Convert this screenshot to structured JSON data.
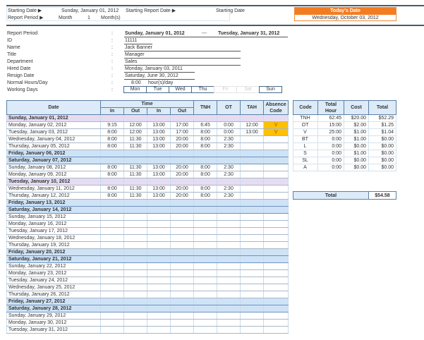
{
  "header": {
    "starting_date_label": "Starting Date ▶",
    "starting_date": "Sunday, January 01, 2012",
    "starting_report_label": "Starting Report Date ▶",
    "starting_report_value": "Starting Date",
    "report_period_label": "Report Period ▶",
    "period_unit": "Month",
    "period_count": "1",
    "period_suffix": "Month(s)",
    "today_label": "Today's Date",
    "today_value": "Wednesday, October 03, 2012",
    "accent": "#f47c20"
  },
  "info": {
    "report_period": {
      "label": "Report Period",
      "from": "Sunday, January 01, 2012",
      "sep": "—",
      "to": "Tuesday, January 31, 2012"
    },
    "fields": [
      {
        "label": "ID",
        "value": "11111"
      },
      {
        "label": "Name",
        "value": "Jack Banner"
      },
      {
        "label": "Title",
        "value": "Manager"
      },
      {
        "label": "Department",
        "value": "Sales"
      },
      {
        "label": "Hired Date",
        "value": "Monday, January 03, 2011"
      },
      {
        "label": "Resign Date",
        "value": "Saturday, June 30, 2012"
      }
    ],
    "normal_hours": {
      "label": "Normal Hours/Day",
      "value": "8:00",
      "unit": "hour(s)/day"
    },
    "working_days": {
      "label": "Working Days",
      "days": [
        {
          "d": "Mon",
          "on": true
        },
        {
          "d": "Tue",
          "on": true
        },
        {
          "d": "Wed",
          "on": true
        },
        {
          "d": "Thu",
          "on": true
        },
        {
          "d": "Fri",
          "on": false
        },
        {
          "d": "Sat",
          "on": false
        },
        {
          "d": "Sun",
          "on": true
        }
      ]
    },
    "colon": ":"
  },
  "timesheet": {
    "headers": {
      "date": "Date",
      "time": "Time",
      "in": "In",
      "out": "Out",
      "tnh": "TNH",
      "ot": "OT",
      "tah": "TAH",
      "absence": "Absence Code"
    },
    "rows": [
      {
        "date": "Sunday, January 01, 2012",
        "type": "holiday",
        "v": []
      },
      {
        "date": "Monday, January 02, 2012",
        "type": "",
        "v": [
          "9:15",
          "12:00",
          "13:00",
          "17:00",
          "6:45",
          "0:00",
          "12:00",
          "V"
        ]
      },
      {
        "date": "Tuesday, January 03, 2012",
        "type": "",
        "v": [
          "8:00",
          "12:00",
          "13:00",
          "17:00",
          "8:00",
          "0:00",
          "13:00",
          "V"
        ]
      },
      {
        "date": "Wednesday, January 04, 2012",
        "type": "",
        "v": [
          "8:00",
          "11:30",
          "13:00",
          "20:00",
          "8:00",
          "2:30",
          "",
          ""
        ]
      },
      {
        "date": "Thursday, January 05, 2012",
        "type": "",
        "v": [
          "8:00",
          "11:30",
          "13:00",
          "20:00",
          "8:00",
          "2:30",
          "",
          ""
        ]
      },
      {
        "date": "Friday, January 06, 2012",
        "type": "weekend",
        "v": []
      },
      {
        "date": "Saturday, January 07, 2012",
        "type": "weekend",
        "v": []
      },
      {
        "date": "Sunday, January 08, 2012",
        "type": "",
        "v": [
          "8:00",
          "11:30",
          "13:00",
          "20:00",
          "8:00",
          "2:30",
          "",
          ""
        ]
      },
      {
        "date": "Monday, January 09, 2012",
        "type": "",
        "v": [
          "8:00",
          "11:30",
          "13:00",
          "20:00",
          "8:00",
          "2:30",
          "",
          ""
        ]
      },
      {
        "date": "Tuesday, January 10, 2012",
        "type": "holiday",
        "v": []
      },
      {
        "date": "Wednesday, January 11, 2012",
        "type": "",
        "v": [
          "8:00",
          "11:30",
          "13:00",
          "20:00",
          "8:00",
          "2:30",
          "",
          ""
        ]
      },
      {
        "date": "Thursday, January 12, 2012",
        "type": "",
        "v": [
          "8:00",
          "11:30",
          "13:00",
          "20:00",
          "8:00",
          "2:30",
          "",
          ""
        ]
      },
      {
        "date": "Friday, January 13, 2012",
        "type": "weekend",
        "v": []
      },
      {
        "date": "Saturday, January 14, 2012",
        "type": "weekend",
        "v": []
      },
      {
        "date": "Sunday, January 15, 2012",
        "type": "",
        "v": []
      },
      {
        "date": "Monday, January 16, 2012",
        "type": "",
        "v": []
      },
      {
        "date": "Tuesday, January 17, 2012",
        "type": "",
        "v": []
      },
      {
        "date": "Wednesday, January 18, 2012",
        "type": "",
        "v": []
      },
      {
        "date": "Thursday, January 19, 2012",
        "type": "",
        "v": []
      },
      {
        "date": "Friday, January 20, 2012",
        "type": "weekend",
        "v": []
      },
      {
        "date": "Saturday, January 21, 2012",
        "type": "weekend",
        "v": []
      },
      {
        "date": "Sunday, January 22, 2012",
        "type": "",
        "v": []
      },
      {
        "date": "Monday, January 23, 2012",
        "type": "",
        "v": []
      },
      {
        "date": "Tuesday, January 24, 2012",
        "type": "",
        "v": []
      },
      {
        "date": "Wednesday, January 25, 2012",
        "type": "",
        "v": []
      },
      {
        "date": "Thursday, January 26, 2012",
        "type": "",
        "v": []
      },
      {
        "date": "Friday, January 27, 2012",
        "type": "weekend",
        "v": []
      },
      {
        "date": "Saturday, January 28, 2012",
        "type": "weekend",
        "v": []
      },
      {
        "date": "Sunday, January 29, 2012",
        "type": "",
        "v": []
      },
      {
        "date": "Monday, January 30, 2012",
        "type": "",
        "v": []
      },
      {
        "date": "Tuesday, January 31, 2012",
        "type": "",
        "v": []
      }
    ]
  },
  "summary": {
    "headers": [
      "Code",
      "Total Hour",
      "Cost",
      "Total"
    ],
    "rows": [
      [
        "TNH",
        "62:45",
        "$20.00",
        "$52.29"
      ],
      [
        "OT",
        "15:00",
        "$2.00",
        "$1.25"
      ],
      [
        "V",
        "25:00",
        "$1.00",
        "$1.04"
      ],
      [
        "BT",
        "0:00",
        "$1.00",
        "$0.00"
      ],
      [
        "L",
        "0:00",
        "$0.00",
        "$0.00"
      ],
      [
        "S",
        "0:00",
        "$1.00",
        "$0.00"
      ],
      [
        "SL",
        "0:00",
        "$0.00",
        "$0.00"
      ],
      [
        "A",
        "0:00",
        "$0.00",
        "$0.00"
      ]
    ],
    "total_label": "Total",
    "total_value": "$54.58"
  }
}
